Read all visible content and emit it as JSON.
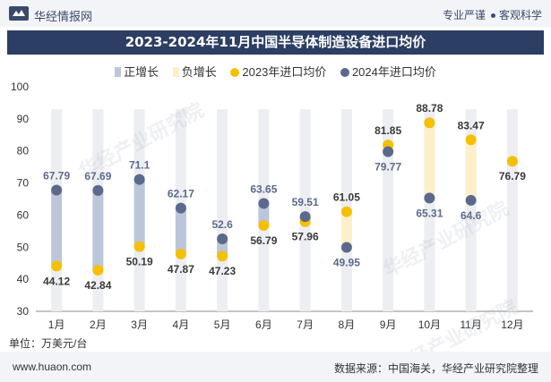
{
  "header": {
    "brand": "华经情报网",
    "slogan_left": "专业严谨",
    "slogan_right": "客观科学"
  },
  "title": "2023-2024年11月中国半导体制造设备进口均价",
  "legend": {
    "pos_label": "正增长",
    "neg_label": "负增长",
    "s2023_label": "2023年进口均价",
    "s2024_label": "2024年进口均价"
  },
  "unit": "单位：万美元/台",
  "footer": {
    "site": "www.huaon.com",
    "source": "数据来源：中国海关，华经产业研究院整理"
  },
  "watermark": "华经产业研究院",
  "colors": {
    "header_bg": "#f2f4f7",
    "title_bg": "#2c3e63",
    "pos": "#bcc6da",
    "neg": "#fdf0c8",
    "s2023": "#f5c000",
    "s2024": "#5b6a8c",
    "track": "#eceef2"
  },
  "chart_data": {
    "type": "scatter",
    "title": "2023-2024年11月中国半导体制造设备进口均价",
    "categories": [
      "1月",
      "2月",
      "3月",
      "4月",
      "5月",
      "6月",
      "7月",
      "8月",
      "9月",
      "10月",
      "11月",
      "12月"
    ],
    "series": [
      {
        "name": "2023年进口均价",
        "values": [
          44.12,
          42.84,
          50.19,
          47.87,
          47.23,
          56.79,
          57.96,
          61.05,
          81.85,
          88.78,
          83.47,
          76.79
        ]
      },
      {
        "name": "2024年进口均价",
        "values": [
          67.79,
          67.69,
          71.1,
          62.17,
          52.6,
          63.65,
          59.51,
          49.95,
          79.77,
          65.31,
          64.6,
          null
        ]
      }
    ],
    "yticks": [
      30,
      40,
      50,
      60,
      70,
      80,
      90,
      100
    ],
    "ylim": [
      30,
      100
    ],
    "xlabel": "",
    "ylabel": "万美元/台"
  }
}
